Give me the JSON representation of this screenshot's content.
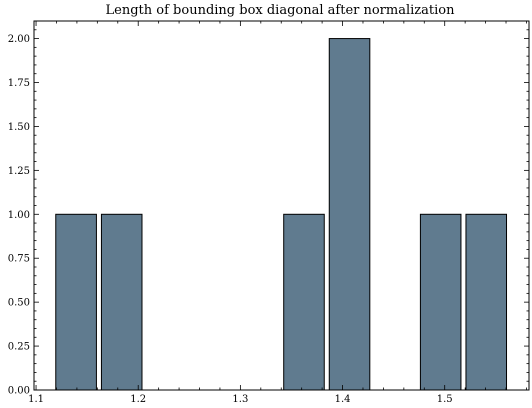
{
  "chart_data": {
    "type": "bar",
    "title": "Length of bounding box diagonal after normalization",
    "xlabel": "",
    "ylabel": "",
    "bins": [
      {
        "start": 1.1193,
        "end": 1.1591,
        "count": 1
      },
      {
        "start": 1.164,
        "end": 1.2037,
        "count": 1
      },
      {
        "start": 1.3424,
        "end": 1.3821,
        "count": 1
      },
      {
        "start": 1.387,
        "end": 1.4267,
        "count": 2
      },
      {
        "start": 1.4762,
        "end": 1.5159,
        "count": 1
      },
      {
        "start": 1.5208,
        "end": 1.5605,
        "count": 1
      }
    ],
    "xlim": [
      1.098,
      1.5825
    ],
    "ylim": [
      0,
      2.1
    ],
    "xticks": [
      1.1,
      1.2,
      1.3,
      1.4,
      1.5
    ],
    "xtick_labels": [
      "1.1",
      "1.2",
      "1.3",
      "1.4",
      "1.5"
    ],
    "yticks": [
      0,
      0.25,
      0.5,
      0.75,
      1.0,
      1.25,
      1.5,
      1.75,
      2.0
    ],
    "ytick_labels": [
      "0.00",
      "0.25",
      "0.50",
      "0.75",
      "1.00",
      "1.25",
      "1.50",
      "1.75",
      "2.00"
    ],
    "grid": false,
    "bar_color": "#607b8f",
    "bar_edge_color": "#000000"
  }
}
